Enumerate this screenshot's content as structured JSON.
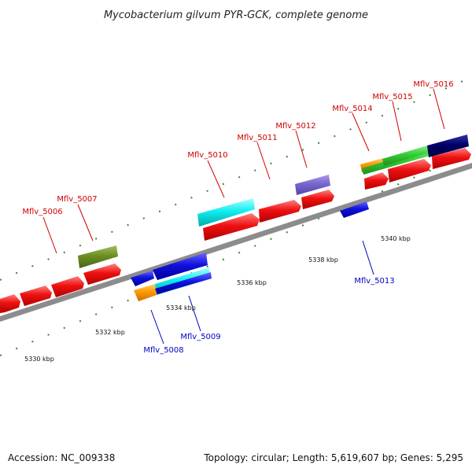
{
  "title": "Mycobacterium gilvum PYR-GCK, complete genome",
  "footer": {
    "accession": "Accession: NC_009338",
    "summary": "Topology: circular; Length: 5,619,607 bp; Genes: 5,295"
  },
  "colors": {
    "backbone": "#8c8c8c",
    "tick": "#2e8b2e",
    "forward_label": "#d00000",
    "reverse_label": "#0000c0",
    "red": "#ee1111",
    "green": "#33cc33",
    "olive": "#6b8e23",
    "cyan": "#11eeee",
    "blue": "#1111dd",
    "navy": "#000066",
    "orange": "#ff9900",
    "lavender": "#7766cc"
  },
  "scale": {
    "ticks_kbp": [
      {
        "pos": 5330,
        "label": "5330 kbp"
      },
      {
        "pos": 5332,
        "label": "5332 kbp"
      },
      {
        "pos": 5334,
        "label": "5334 kbp"
      },
      {
        "pos": 5336,
        "label": "5336 kbp"
      },
      {
        "pos": 5338,
        "label": "5338 kbp"
      },
      {
        "pos": 5340,
        "label": "5340 kbp"
      }
    ]
  },
  "gene_labels": [
    {
      "text": "Mflv_5006",
      "strand": "forward"
    },
    {
      "text": "Mflv_5007",
      "strand": "forward"
    },
    {
      "text": "Mflv_5010",
      "strand": "forward"
    },
    {
      "text": "Mflv_5011",
      "strand": "forward"
    },
    {
      "text": "Mflv_5012",
      "strand": "forward"
    },
    {
      "text": "Mflv_5014",
      "strand": "forward"
    },
    {
      "text": "Mflv_5015",
      "strand": "forward"
    },
    {
      "text": "Mflv_5016",
      "strand": "forward"
    },
    {
      "text": "Mflv_5013",
      "strand": "reverse"
    },
    {
      "text": "Mflv_5008",
      "strand": "reverse"
    },
    {
      "text": "Mflv_5009",
      "strand": "reverse"
    }
  ]
}
